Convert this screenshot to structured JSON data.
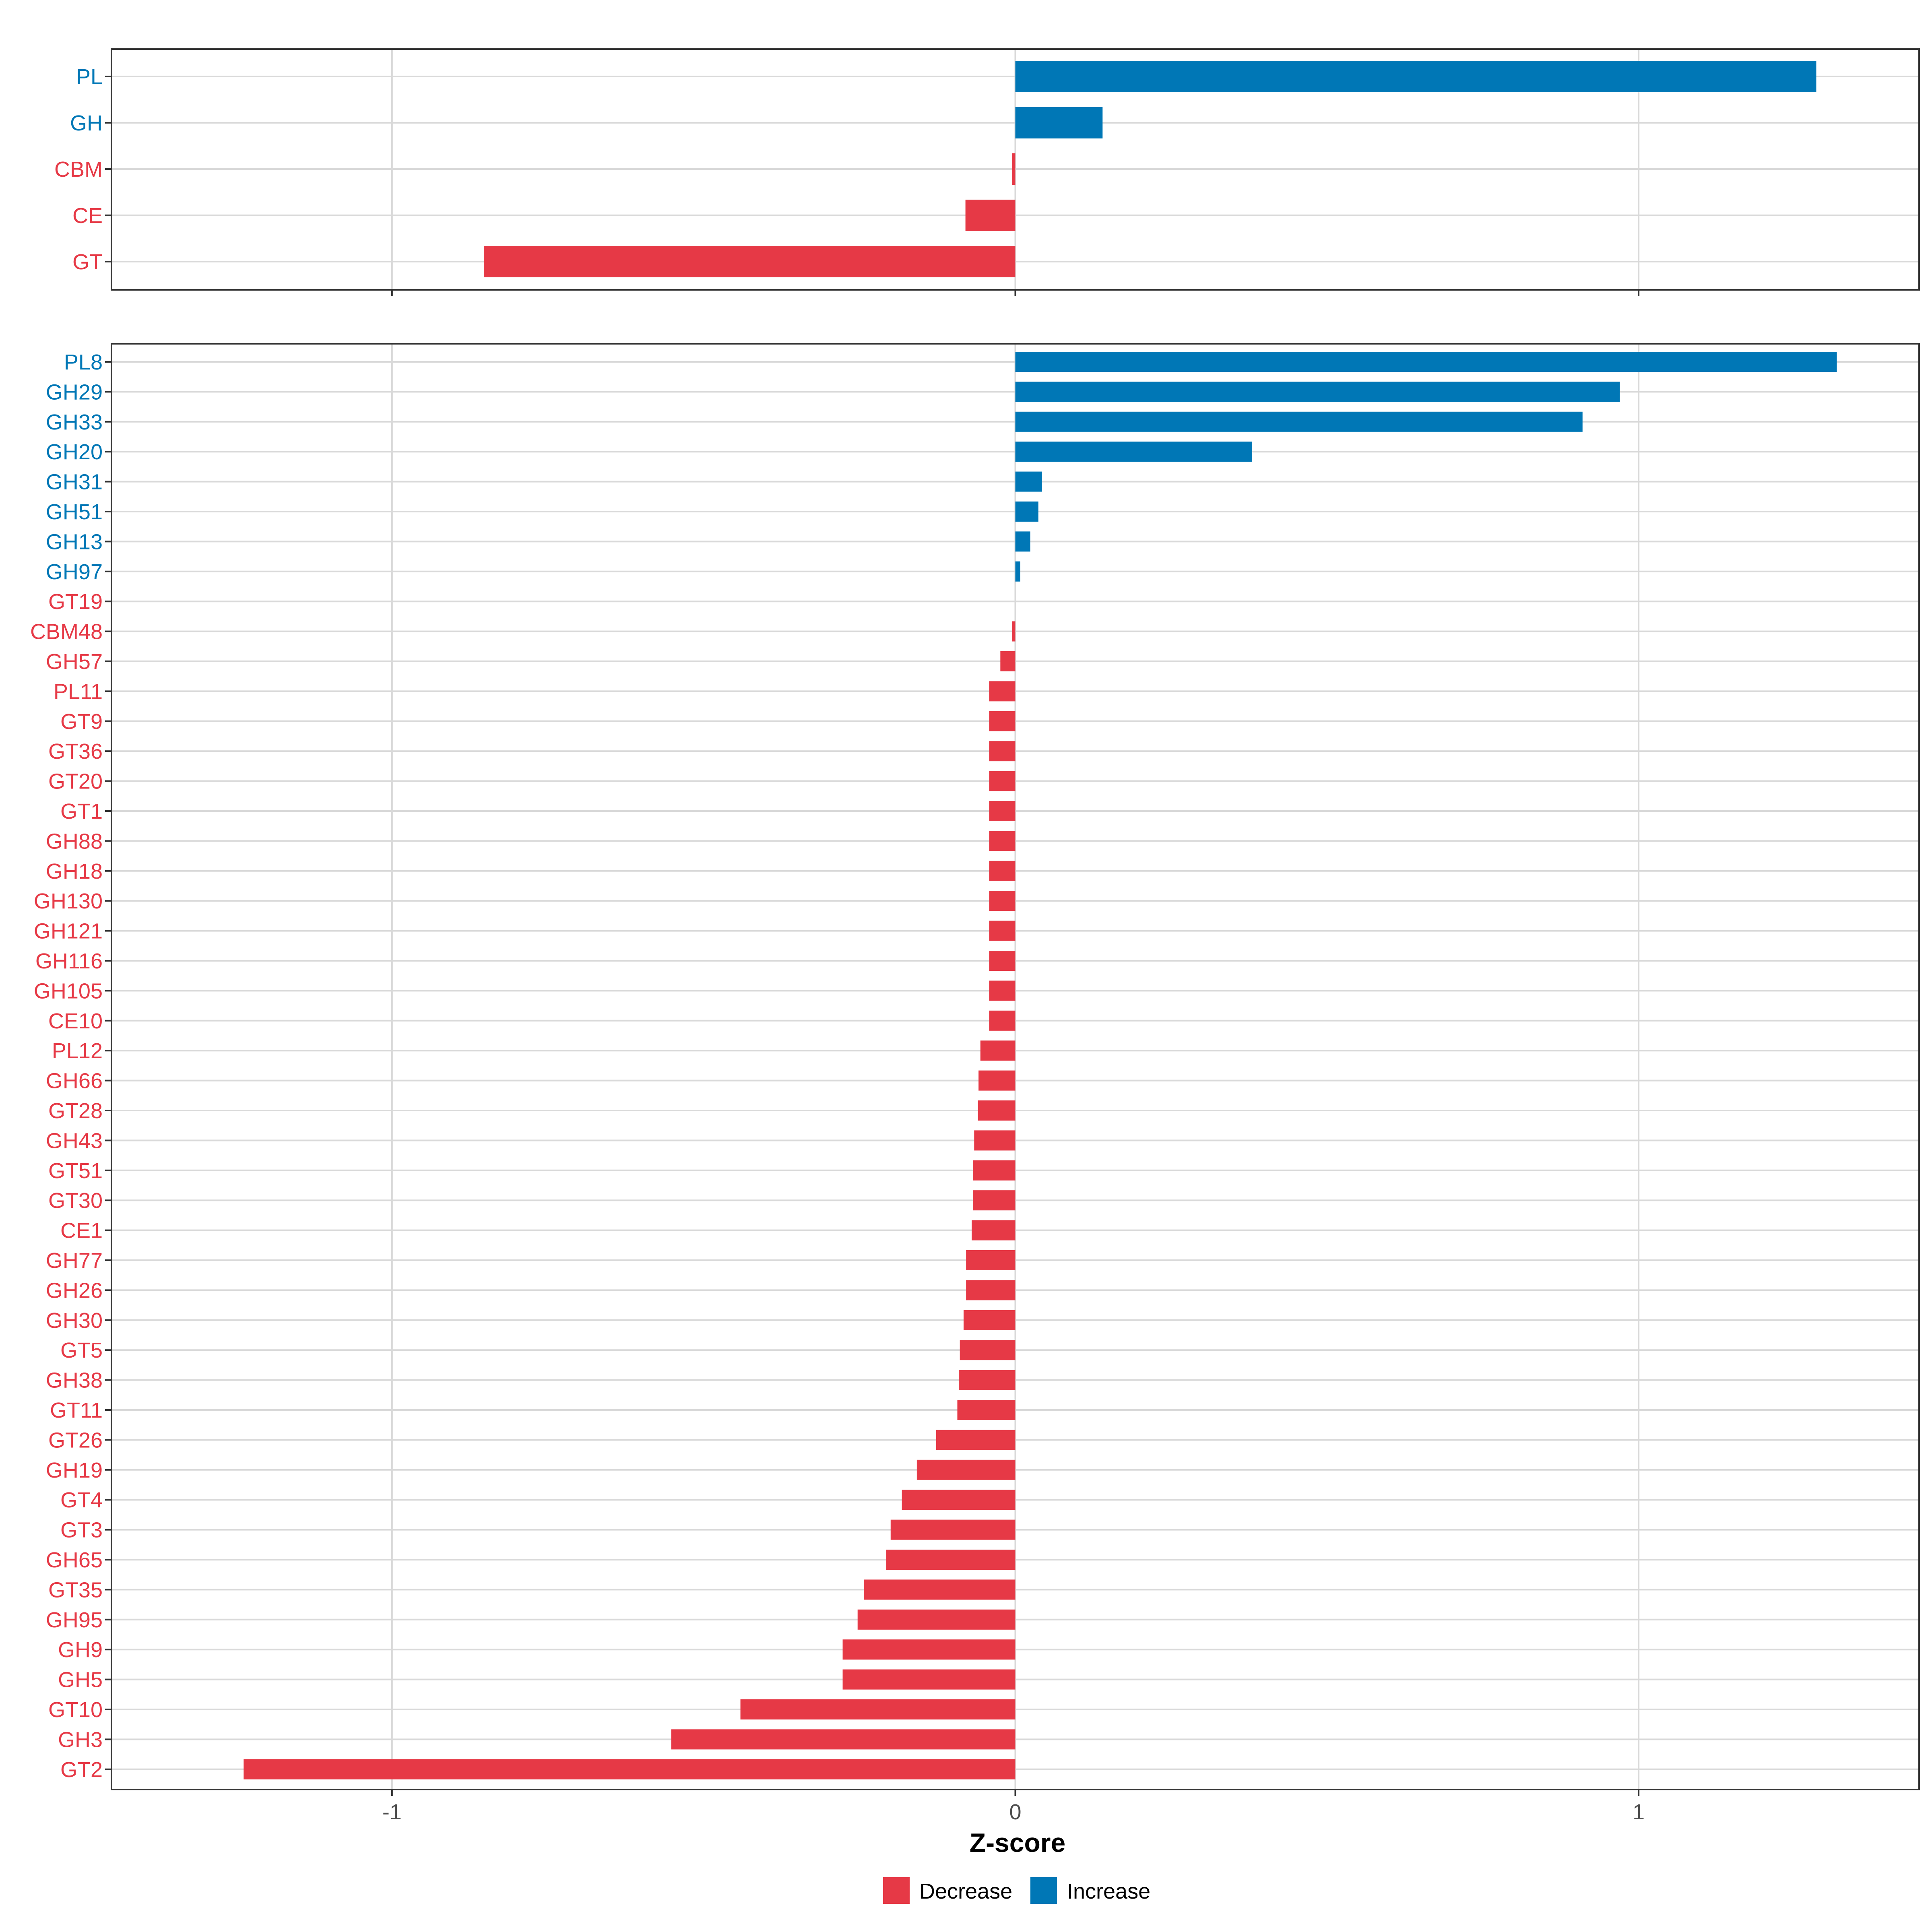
{
  "colors": {
    "decrease": "#E63946",
    "increase": "#0077B6",
    "grid": "#D9D9D9",
    "frame": "#333333"
  },
  "chart_data": [
    {
      "type": "bar",
      "orientation": "horizontal",
      "panel": "top",
      "categories": [
        "PL",
        "GH",
        "CBM",
        "CE",
        "GT"
      ],
      "values": [
        1.285,
        0.14,
        -0.005,
        -0.08,
        -0.852
      ],
      "direction": [
        "Increase",
        "Increase",
        "Decrease",
        "Decrease",
        "Decrease"
      ],
      "xlim": [
        -1.45,
        1.45
      ],
      "xticks": [
        -1,
        0,
        1
      ],
      "grid": true
    },
    {
      "type": "bar",
      "orientation": "horizontal",
      "panel": "bottom",
      "categories": [
        "PL8",
        "GH29",
        "GH33",
        "GH20",
        "GH31",
        "GH51",
        "GH13",
        "GH97",
        "GT19",
        "CBM48",
        "GH57",
        "PL11",
        "GT9",
        "GT36",
        "GT20",
        "GT1",
        "GH88",
        "GH18",
        "GH130",
        "GH121",
        "GH116",
        "GH105",
        "CE10",
        "PL12",
        "GH66",
        "GT28",
        "GH43",
        "GT51",
        "GT30",
        "CE1",
        "GH77",
        "GH26",
        "GH30",
        "GT5",
        "GH38",
        "GT11",
        "GT26",
        "GH19",
        "GT4",
        "GT3",
        "GH65",
        "GT35",
        "GH95",
        "GH9",
        "GH5",
        "GT10",
        "GH3",
        "GT2"
      ],
      "values": [
        1.318,
        0.97,
        0.91,
        0.38,
        0.043,
        0.037,
        0.024,
        0.008,
        0,
        -0.005,
        -0.024,
        -0.042,
        -0.042,
        -0.042,
        -0.042,
        -0.042,
        -0.042,
        -0.042,
        -0.042,
        -0.042,
        -0.042,
        -0.042,
        -0.042,
        -0.056,
        -0.059,
        -0.06,
        -0.066,
        -0.068,
        -0.068,
        -0.07,
        -0.079,
        -0.079,
        -0.083,
        -0.089,
        -0.09,
        -0.093,
        -0.127,
        -0.158,
        -0.182,
        -0.2,
        -0.207,
        -0.243,
        -0.253,
        -0.277,
        -0.277,
        -0.441,
        -0.552,
        -1.238
      ],
      "direction": [
        "Increase",
        "Increase",
        "Increase",
        "Increase",
        "Increase",
        "Increase",
        "Increase",
        "Increase",
        "Decrease",
        "Decrease",
        "Decrease",
        "Decrease",
        "Decrease",
        "Decrease",
        "Decrease",
        "Decrease",
        "Decrease",
        "Decrease",
        "Decrease",
        "Decrease",
        "Decrease",
        "Decrease",
        "Decrease",
        "Decrease",
        "Decrease",
        "Decrease",
        "Decrease",
        "Decrease",
        "Decrease",
        "Decrease",
        "Decrease",
        "Decrease",
        "Decrease",
        "Decrease",
        "Decrease",
        "Decrease",
        "Decrease",
        "Decrease",
        "Decrease",
        "Decrease",
        "Decrease",
        "Decrease",
        "Decrease",
        "Decrease",
        "Decrease",
        "Decrease",
        "Decrease",
        "Decrease"
      ],
      "xlim": [
        -1.45,
        1.45
      ],
      "xticks": [
        -1,
        0,
        1
      ],
      "xtick_labels": [
        "-1",
        "0",
        "1"
      ],
      "xlabel": "Z-score",
      "grid": true
    }
  ],
  "legend": {
    "position": "bottom",
    "items": [
      {
        "label": "Decrease",
        "color": "#E63946"
      },
      {
        "label": "Increase",
        "color": "#0077B6"
      }
    ]
  }
}
